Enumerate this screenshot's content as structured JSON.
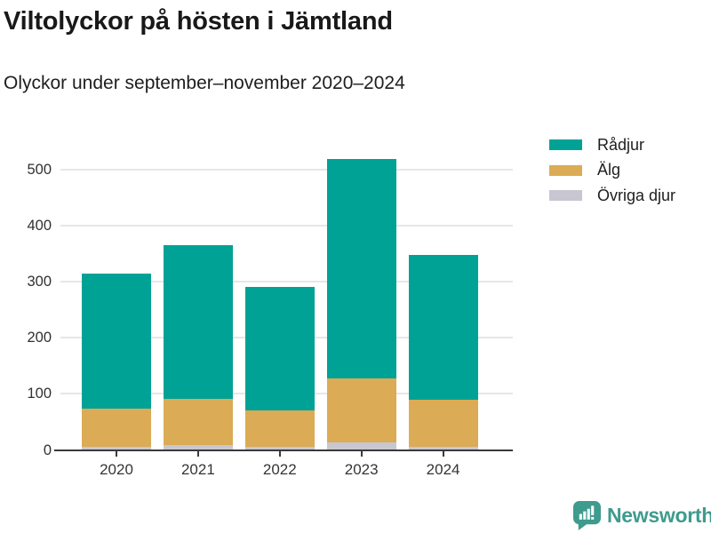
{
  "header": {
    "title": "Viltolyckor på hösten i Jämtland",
    "subtitle": "Olyckor under september–november 2020–2024"
  },
  "chart_data": {
    "type": "bar",
    "stacked": true,
    "title": "Viltolyckor på hösten i Jämtland",
    "subtitle": "Olyckor under september–november 2020–2024",
    "categories": [
      "2020",
      "2021",
      "2022",
      "2023",
      "2024"
    ],
    "series": [
      {
        "name": "Rådjur",
        "color": "#00a296",
        "values": [
          240,
          273,
          220,
          391,
          258
        ]
      },
      {
        "name": "Älg",
        "color": "#dbab55",
        "values": [
          68,
          83,
          65,
          114,
          84
        ]
      },
      {
        "name": "Övriga djur",
        "color": "#c8c6d1",
        "values": [
          6,
          8,
          6,
          13,
          5
        ]
      }
    ],
    "stack_order_bottom_to_top": [
      "Övriga djur",
      "Älg",
      "Rådjur"
    ],
    "totals": [
      314,
      364,
      291,
      518,
      347
    ],
    "xlabel": "",
    "ylabel": "",
    "ylim": [
      0,
      549
    ],
    "yticks": [
      0,
      100,
      200,
      300,
      400,
      500
    ],
    "grid": "horizontal-only",
    "legend_position": "top-right"
  },
  "footer": {
    "brand": "Newsworthy",
    "logo_icon": "bar-chart-speech-bubble-icon"
  },
  "colors": {
    "background": "#ffffff",
    "radjur": "#00a296",
    "alg": "#dbab55",
    "ovriga_djur": "#c8c6d1",
    "gridline": "#e7e7e7",
    "axis": "#3a3a3a",
    "brand": "#3e9b8d"
  }
}
